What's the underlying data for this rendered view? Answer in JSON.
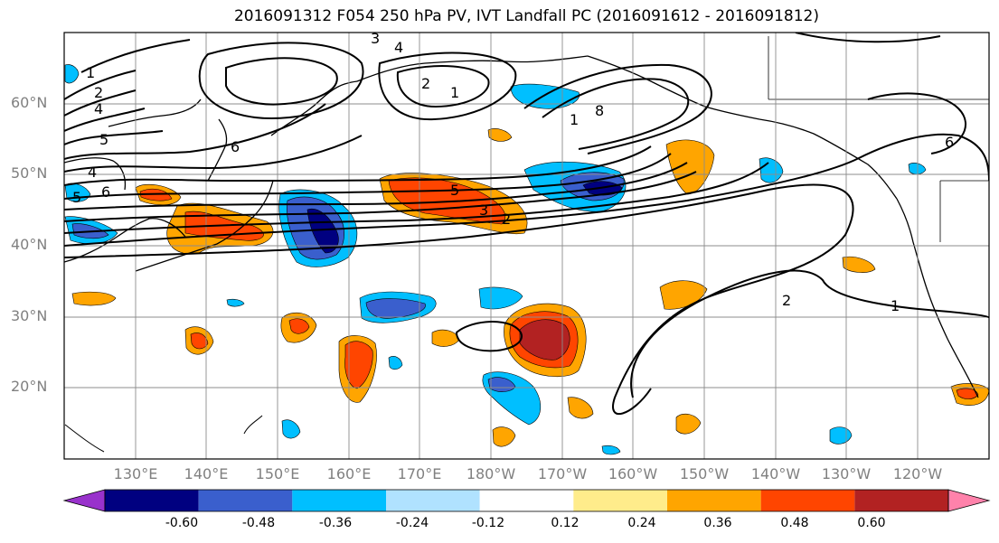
{
  "title": "2016091312 F054 250 hPa PV, IVT Landfall PC (2016091612 - 2016091812)",
  "lat_labels": [
    "60°N",
    "50°N",
    "40°N",
    "30°N",
    "20°N"
  ],
  "lon_labels": [
    "130°E",
    "140°E",
    "150°E",
    "160°E",
    "170°E",
    "180°W",
    "170°W",
    "160°W",
    "150°W",
    "140°W",
    "130°W",
    "120°W"
  ],
  "contour_labels": [
    "1",
    "2",
    "4",
    "5",
    "6",
    "3",
    "4",
    "5",
    "3",
    "2",
    "1",
    "2",
    "1",
    "8",
    "6",
    "4",
    "5",
    "6",
    "1",
    "2"
  ],
  "colorbar": {
    "colors": [
      "#9932CC",
      "#000080",
      "#3A5FCD",
      "#00BFFF",
      "#B0E2FF",
      "#FFFFFF",
      "#FFEC8B",
      "#FFA500",
      "#FF4500",
      "#B22222",
      "#FF82AB"
    ],
    "tick_labels": [
      "-0.60",
      "-0.48",
      "-0.36",
      "-0.24",
      "-0.12",
      "0.12",
      "0.24",
      "0.36",
      "0.48",
      "0.60"
    ]
  }
}
